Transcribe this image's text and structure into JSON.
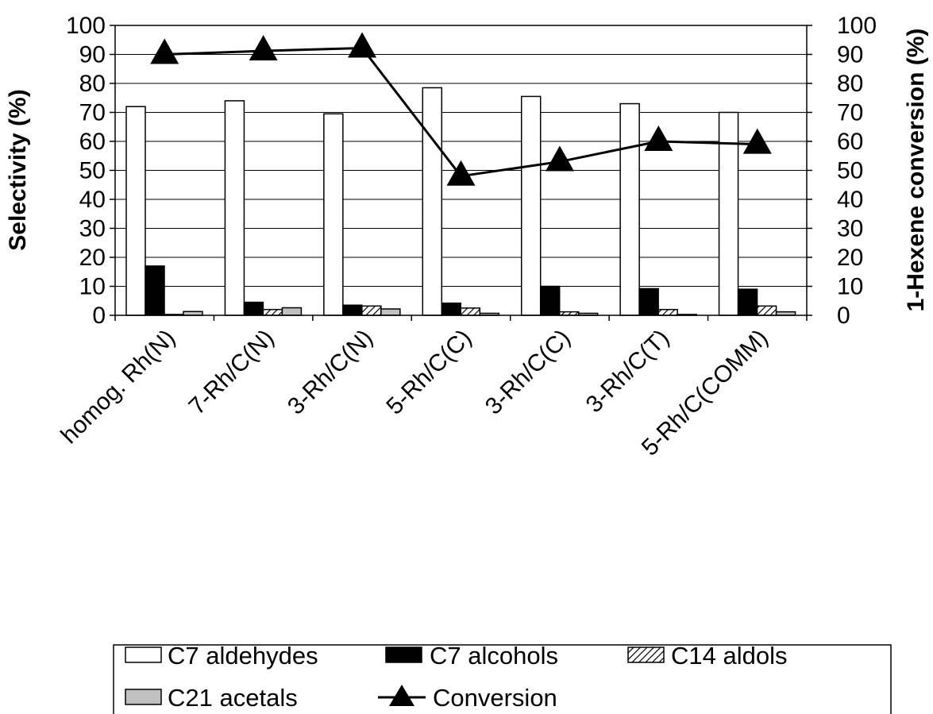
{
  "chart_data": {
    "type": "bar",
    "title": "",
    "categories": [
      "homog. Rh(N)",
      "7-Rh/C(N)",
      "3-Rh/C(N)",
      "5-Rh/C(C)",
      "3-Rh/C(C)",
      "3-Rh/C(T)",
      "5-Rh/C(COMM)"
    ],
    "ylabel_left": "Selectivity (%)",
    "ylabel_right": "1-Hexene conversion (%)",
    "ylim": [
      0,
      100
    ],
    "yticks": [
      0,
      10,
      20,
      30,
      40,
      50,
      60,
      70,
      80,
      90,
      100
    ],
    "grid": true,
    "legend_position": "bottom",
    "series": [
      {
        "name": "C7 aldehydes",
        "kind": "bar",
        "fill": "white",
        "color": "#ffffff",
        "values": [
          72,
          74,
          69.5,
          78.5,
          75.5,
          73,
          70
        ]
      },
      {
        "name": "C7 alcohols",
        "kind": "bar",
        "fill": "black",
        "color": "#000000",
        "values": [
          17,
          4.5,
          3.5,
          4.2,
          10,
          9.2,
          9
        ]
      },
      {
        "name": "C14 aldols",
        "kind": "bar",
        "fill": "hatched",
        "color": "#000000",
        "values": [
          0.3,
          2,
          3.2,
          2.5,
          1.2,
          2,
          3.2
        ]
      },
      {
        "name": "C21 acetals",
        "kind": "bar",
        "fill": "gray",
        "color": "#c0c0c0",
        "values": [
          1.3,
          2.6,
          2.2,
          0.7,
          0.7,
          0.3,
          1.2
        ]
      },
      {
        "name": "Conversion",
        "kind": "line",
        "axis": "right",
        "marker": "triangle",
        "color": "#000000",
        "values": [
          90,
          91.2,
          92.2,
          48,
          53,
          60,
          59
        ]
      }
    ]
  }
}
